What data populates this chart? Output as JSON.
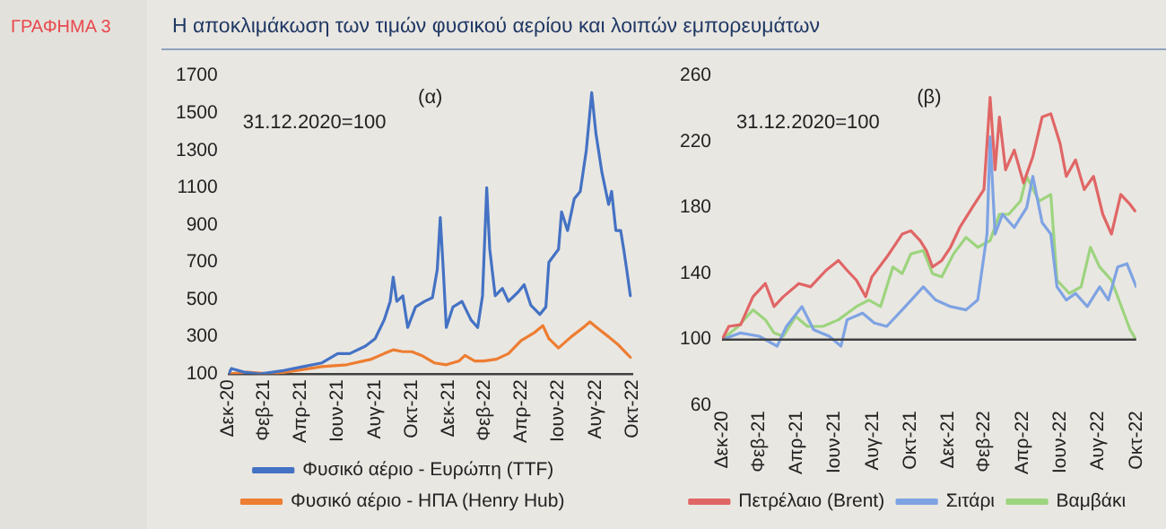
{
  "chart_data": [
    {
      "type": "line",
      "title": "ΓΡΑΦΗΜΑ 3",
      "subtitle": "Η αποκλιμάκωση των τιμών φυσικού αερίου και λοιπών εμπορευμάτων",
      "annotations": [
        "(α)",
        "31.12.2020=100"
      ],
      "xlim": [
        "2020-12-31",
        "2022-10-31"
      ],
      "xticks": [
        {
          "value": "2020-12-31",
          "label": "Δεκ-20"
        },
        {
          "value": "2021-02-28",
          "label": "Φεβ-21"
        },
        {
          "value": "2021-04-30",
          "label": "Απρ-21"
        },
        {
          "value": "2021-06-30",
          "label": "Ιουν-21"
        },
        {
          "value": "2021-08-31",
          "label": "Αυγ-21"
        },
        {
          "value": "2021-10-31",
          "label": "Οκτ-21"
        },
        {
          "value": "2021-12-31",
          "label": "Δεκ-21"
        },
        {
          "value": "2022-02-28",
          "label": "Φεβ-22"
        },
        {
          "value": "2022-04-30",
          "label": "Απρ-22"
        },
        {
          "value": "2022-06-30",
          "label": "Ιουν-22"
        },
        {
          "value": "2022-08-31",
          "label": "Αυγ-22"
        },
        {
          "value": "2022-10-31",
          "label": "Οκτ-22"
        }
      ],
      "ylim": [
        100,
        1700
      ],
      "yticks": [
        100,
        300,
        500,
        700,
        900,
        1100,
        1300,
        1500,
        1700
      ],
      "grid": false,
      "legend": "bottom",
      "marker": "none",
      "line_style": "solid",
      "series": [
        {
          "name": "Φυσικό αέριο - Ευρώπη (TTF)",
          "color": "#4472c4",
          "x": [
            "2020-12-31",
            "2021-01-05",
            "2021-01-26",
            "2021-02-21",
            "2021-04-03",
            "2021-05-04",
            "2021-06-04",
            "2021-06-30",
            "2021-07-20",
            "2021-08-15",
            "2021-08-31",
            "2021-09-15",
            "2021-09-25",
            "2021-09-30",
            "2021-10-06",
            "2021-10-16",
            "2021-10-24",
            "2021-11-06",
            "2021-11-21",
            "2021-12-04",
            "2021-12-12",
            "2021-12-17",
            "2021-12-22",
            "2021-12-27",
            "2022-01-07",
            "2022-01-22",
            "2022-02-06",
            "2022-02-17",
            "2022-02-25",
            "2022-03-04",
            "2022-03-09",
            "2022-03-18",
            "2022-03-30",
            "2022-04-09",
            "2022-04-25",
            "2022-05-05",
            "2022-05-16",
            "2022-05-31",
            "2022-06-10",
            "2022-06-15",
            "2022-07-01",
            "2022-07-06",
            "2022-07-16",
            "2022-07-27",
            "2022-08-06",
            "2022-08-16",
            "2022-08-25",
            "2022-09-01",
            "2022-09-11",
            "2022-09-22",
            "2022-09-27",
            "2022-10-04",
            "2022-10-12",
            "2022-10-17",
            "2022-10-22",
            "2022-10-28"
          ],
          "values": [
            100,
            130,
            110,
            100,
            120,
            140,
            160,
            210,
            210,
            250,
            290,
            390,
            490,
            620,
            490,
            520,
            350,
            460,
            490,
            510,
            660,
            940,
            660,
            350,
            460,
            490,
            390,
            350,
            520,
            1100,
            770,
            520,
            560,
            490,
            540,
            580,
            470,
            420,
            460,
            700,
            770,
            970,
            870,
            1040,
            1080,
            1300,
            1610,
            1390,
            1180,
            1010,
            1080,
            870,
            870,
            770,
            660,
            520
          ]
        },
        {
          "name": "Φυσικό αέριο - ΗΠΑ (Henry Hub)",
          "color": "#ed7d31",
          "x": [
            "2020-12-31",
            "2021-01-31",
            "2021-03-13",
            "2021-04-24",
            "2021-06-04",
            "2021-07-15",
            "2021-08-25",
            "2021-09-15",
            "2021-09-30",
            "2021-10-16",
            "2021-10-31",
            "2021-11-16",
            "2021-12-07",
            "2021-12-27",
            "2022-01-17",
            "2022-01-27",
            "2022-02-12",
            "2022-02-27",
            "2022-03-20",
            "2022-04-09",
            "2022-04-30",
            "2022-05-21",
            "2022-06-05",
            "2022-06-15",
            "2022-07-01",
            "2022-07-22",
            "2022-08-11",
            "2022-08-22",
            "2022-09-06",
            "2022-09-22",
            "2022-10-07",
            "2022-10-22",
            "2022-10-28"
          ],
          "values": [
            100,
            110,
            100,
            120,
            140,
            150,
            180,
            210,
            230,
            220,
            220,
            200,
            160,
            150,
            170,
            200,
            170,
            170,
            180,
            210,
            280,
            320,
            360,
            290,
            240,
            300,
            350,
            380,
            340,
            300,
            260,
            210,
            190
          ]
        }
      ]
    },
    {
      "type": "line",
      "annotations": [
        "(β)",
        "31.12.2020=100"
      ],
      "xlim": [
        "2020-12-31",
        "2022-10-31"
      ],
      "xticks": [
        {
          "value": "2020-12-31",
          "label": "Δεκ-20"
        },
        {
          "value": "2021-02-28",
          "label": "Φεβ-21"
        },
        {
          "value": "2021-04-30",
          "label": "Απρ-21"
        },
        {
          "value": "2021-06-30",
          "label": "Ιουν-21"
        },
        {
          "value": "2021-08-31",
          "label": "Αυγ-21"
        },
        {
          "value": "2021-10-31",
          "label": "Οκτ-21"
        },
        {
          "value": "2021-12-31",
          "label": "Δεκ-21"
        },
        {
          "value": "2022-02-28",
          "label": "Φεβ-22"
        },
        {
          "value": "2022-04-30",
          "label": "Απρ-22"
        },
        {
          "value": "2022-06-30",
          "label": "Ιουν-22"
        },
        {
          "value": "2022-08-31",
          "label": "Αυγ-22"
        },
        {
          "value": "2022-10-31",
          "label": "Οκτ-22"
        }
      ],
      "ylim": [
        60,
        260
      ],
      "yticks": [
        60,
        100,
        140,
        180,
        220,
        260
      ],
      "grid": false,
      "legend": "bottom",
      "marker": "none",
      "line_style": "solid",
      "ref_lines": [
        {
          "axis": "y",
          "value": 100,
          "color": "#404040"
        }
      ],
      "series": [
        {
          "name": "Πετρέλαιο (Brent)",
          "color": "#e06666",
          "x": [
            "2020-12-31",
            "2021-01-11",
            "2021-01-30",
            "2021-02-19",
            "2021-03-11",
            "2021-03-25",
            "2021-04-09",
            "2021-05-04",
            "2021-05-23",
            "2021-06-17",
            "2021-07-07",
            "2021-07-21",
            "2021-08-05",
            "2021-08-20",
            "2021-08-30",
            "2021-09-23",
            "2021-10-18",
            "2021-11-01",
            "2021-11-16",
            "2021-11-26",
            "2021-12-06",
            "2021-12-21",
            "2022-01-04",
            "2022-01-19",
            "2022-02-08",
            "2022-02-27",
            "2022-03-09",
            "2022-03-17",
            "2022-03-24",
            "2022-04-03",
            "2022-04-17",
            "2022-05-02",
            "2022-05-17",
            "2022-06-01",
            "2022-06-15",
            "2022-06-30",
            "2022-07-10",
            "2022-07-25",
            "2022-08-08",
            "2022-08-23",
            "2022-09-07",
            "2022-09-21",
            "2022-10-06",
            "2022-10-21",
            "2022-10-29"
          ],
          "values": [
            100,
            108,
            109,
            126,
            134,
            120,
            126,
            134,
            132,
            142,
            148,
            142,
            136,
            126,
            138,
            150,
            164,
            166,
            160,
            154,
            144,
            148,
            156,
            168,
            180,
            191,
            247,
            203,
            235,
            203,
            215,
            195,
            211,
            235,
            237,
            219,
            199,
            209,
            191,
            199,
            176,
            164,
            188,
            182,
            178
          ]
        },
        {
          "name": "Σιτάρι",
          "color": "#7ea3e3",
          "x": [
            "2020-12-31",
            "2021-01-30",
            "2021-03-01",
            "2021-03-30",
            "2021-04-14",
            "2021-05-09",
            "2021-05-28",
            "2021-06-22",
            "2021-07-11",
            "2021-07-21",
            "2021-08-15",
            "2021-09-03",
            "2021-09-23",
            "2021-10-23",
            "2021-11-21",
            "2021-12-11",
            "2022-01-04",
            "2022-01-29",
            "2022-02-17",
            "2022-03-04",
            "2022-03-09",
            "2022-03-17",
            "2022-03-29",
            "2022-04-17",
            "2022-05-07",
            "2022-05-17",
            "2022-06-01",
            "2022-06-15",
            "2022-06-25",
            "2022-07-10",
            "2022-07-25",
            "2022-08-13",
            "2022-09-02",
            "2022-09-16",
            "2022-10-01",
            "2022-10-16",
            "2022-10-31"
          ],
          "values": [
            100,
            104,
            102,
            96,
            108,
            120,
            106,
            102,
            96,
            112,
            116,
            110,
            108,
            120,
            132,
            124,
            120,
            118,
            124,
            164,
            223,
            164,
            176,
            168,
            180,
            199,
            171,
            164,
            132,
            124,
            128,
            120,
            132,
            124,
            144,
            146,
            132
          ]
        },
        {
          "name": "Βαμβάκι",
          "color": "#9dd47e",
          "x": [
            "2020-12-31",
            "2021-01-26",
            "2021-02-19",
            "2021-03-11",
            "2021-03-25",
            "2021-04-09",
            "2021-04-29",
            "2021-05-18",
            "2021-06-12",
            "2021-07-07",
            "2021-08-05",
            "2021-08-25",
            "2021-09-13",
            "2021-10-03",
            "2021-10-18",
            "2021-11-01",
            "2021-11-21",
            "2021-12-06",
            "2021-12-21",
            "2022-01-09",
            "2022-01-29",
            "2022-02-17",
            "2022-03-09",
            "2022-03-24",
            "2022-04-08",
            "2022-04-27",
            "2022-05-07",
            "2022-05-27",
            "2022-06-15",
            "2022-06-25",
            "2022-07-15",
            "2022-08-03",
            "2022-08-18",
            "2022-09-02",
            "2022-09-21",
            "2022-10-11",
            "2022-10-21",
            "2022-10-29"
          ],
          "values": [
            100,
            108,
            118,
            112,
            104,
            102,
            114,
            108,
            108,
            112,
            120,
            124,
            120,
            144,
            140,
            152,
            154,
            140,
            138,
            152,
            162,
            156,
            160,
            176,
            176,
            184,
            199,
            184,
            188,
            136,
            128,
            132,
            156,
            144,
            136,
            116,
            106,
            101
          ]
        }
      ]
    }
  ]
}
